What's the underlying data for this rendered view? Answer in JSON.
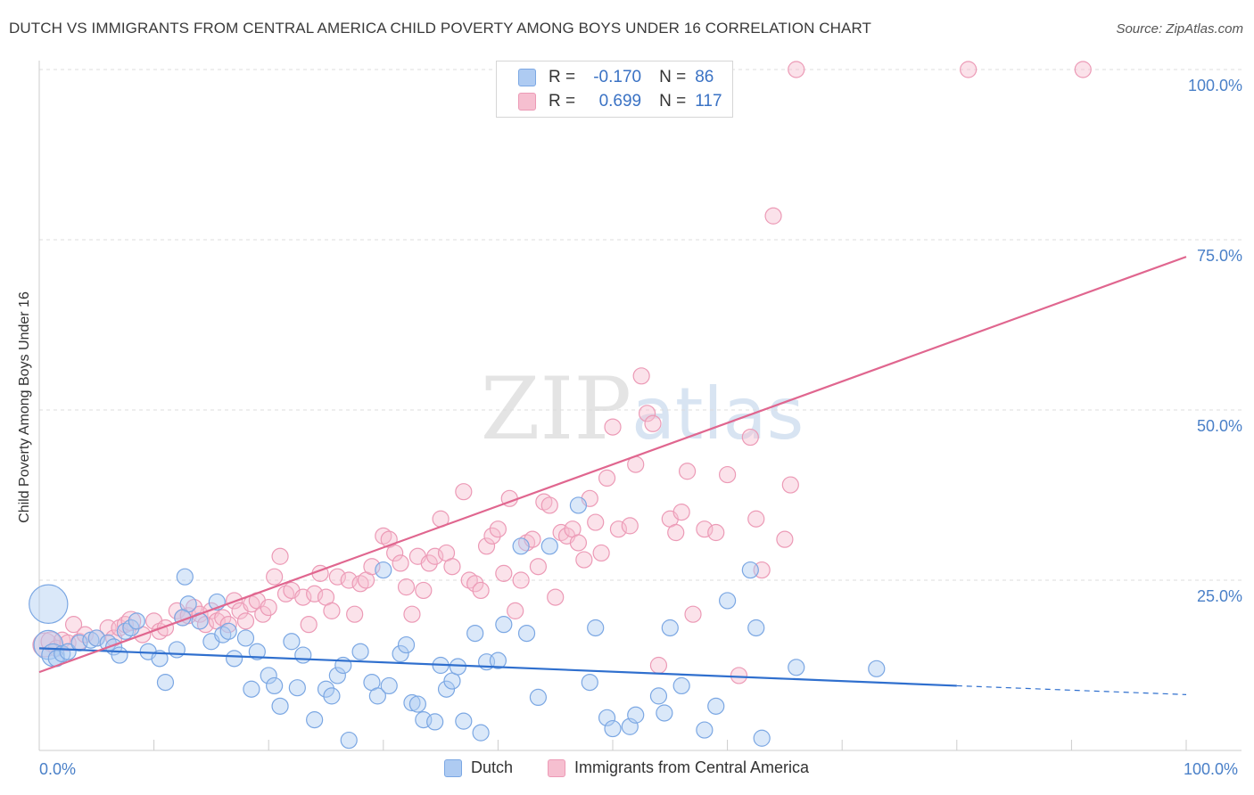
{
  "title": "DUTCH VS IMMIGRANTS FROM CENTRAL AMERICA CHILD POVERTY AMONG BOYS UNDER 16 CORRELATION CHART",
  "source": "Source: ZipAtlas.com",
  "watermark": "ZIPatlas",
  "stats": {
    "dutch": {
      "r_label": "R =",
      "r": "-0.170",
      "n_label": "N =",
      "n": "86"
    },
    "immigrants": {
      "r_label": "R =",
      "r": "0.699",
      "n_label": "N =",
      "n": "117"
    }
  },
  "legend": {
    "dutch": "Dutch",
    "immigrants": "Immigrants from Central America"
  },
  "colors": {
    "dutch_fill": "#aecbf2",
    "dutch_stroke": "#7ba7e3",
    "dutch_line": "#2f6fce",
    "imm_fill": "#f6bfd0",
    "imm_stroke": "#ec9ab6",
    "imm_line": "#e0668f",
    "axis_text": "#4a80c8",
    "grid": "#dddddd"
  },
  "chart_data": {
    "type": "scatter",
    "title": "DUTCH VS IMMIGRANTS FROM CENTRAL AMERICA CHILD POVERTY AMONG BOYS UNDER 16 CORRELATION CHART",
    "xlabel": "",
    "ylabel": "Child Poverty Among Boys Under 16",
    "xlim": [
      0,
      100
    ],
    "ylim": [
      0,
      100
    ],
    "x_tick_labels": [
      "0.0%",
      "100.0%"
    ],
    "y_tick_labels": [
      "25.0%",
      "50.0%",
      "75.0%",
      "100.0%"
    ],
    "y_ticks": [
      25,
      50,
      75,
      100
    ],
    "grid": true,
    "legend_position": "bottom-center",
    "series": [
      {
        "name": "Dutch",
        "trend": {
          "x": [
            0,
            80
          ],
          "y": [
            15.0,
            9.5
          ],
          "dashed_extension_to_x": 100,
          "dashed_extension_y": 8.2
        },
        "points": [
          [
            0.8,
            21.5,
            2.4
          ],
          [
            0.8,
            15.5,
            1.8
          ],
          [
            1.2,
            14,
            1.4
          ],
          [
            1.5,
            13.5,
            1
          ],
          [
            2,
            14.2,
            1
          ],
          [
            2.5,
            14.5,
            1
          ],
          [
            3.5,
            15.8,
            1
          ],
          [
            4.5,
            16.2,
            1
          ],
          [
            5,
            16.5,
            1
          ],
          [
            6,
            15.8,
            1
          ],
          [
            6.5,
            15.2,
            1
          ],
          [
            7,
            14,
            1
          ],
          [
            7.5,
            17.5,
            1
          ],
          [
            8,
            18,
            1
          ],
          [
            8.5,
            19,
            1
          ],
          [
            9.5,
            14.5,
            1
          ],
          [
            10.5,
            13.5,
            1
          ],
          [
            11,
            10,
            1
          ],
          [
            12,
            14.8,
            1
          ],
          [
            13,
            21.5,
            1
          ],
          [
            14,
            19,
            1
          ],
          [
            15,
            16,
            1
          ],
          [
            15.5,
            21.8,
            1
          ],
          [
            16,
            17,
            1
          ],
          [
            12.5,
            19.5,
            1
          ],
          [
            12.7,
            25.5,
            1
          ],
          [
            16.5,
            17.5,
            1
          ],
          [
            17,
            13.5,
            1
          ],
          [
            18,
            16.5,
            1
          ],
          [
            18.5,
            9,
            1
          ],
          [
            19,
            14.5,
            1
          ],
          [
            20,
            11,
            1
          ],
          [
            20.5,
            9.5,
            1
          ],
          [
            21,
            6.5,
            1
          ],
          [
            22,
            16,
            1
          ],
          [
            22.5,
            9.2,
            1
          ],
          [
            23,
            14,
            1
          ],
          [
            24,
            4.5,
            1
          ],
          [
            25,
            9,
            1
          ],
          [
            25.5,
            8,
            1
          ],
          [
            26,
            11,
            1
          ],
          [
            26.5,
            12.5,
            1
          ],
          [
            27,
            1.5,
            1
          ],
          [
            28,
            14.5,
            1
          ],
          [
            29,
            10,
            1
          ],
          [
            29.5,
            8,
            1
          ],
          [
            30,
            26.5,
            1
          ],
          [
            30.5,
            9.5,
            1
          ],
          [
            31.5,
            14.2,
            1
          ],
          [
            32,
            15.5,
            1
          ],
          [
            32.5,
            7,
            1
          ],
          [
            33,
            6.8,
            1
          ],
          [
            33.5,
            4.5,
            1
          ],
          [
            34.5,
            4.2,
            1
          ],
          [
            35,
            12.5,
            1
          ],
          [
            35.5,
            9,
            1
          ],
          [
            36,
            10.2,
            1
          ],
          [
            36.5,
            12.3,
            1
          ],
          [
            37,
            4.3,
            1
          ],
          [
            38,
            17.2,
            1
          ],
          [
            38.5,
            2.6,
            1
          ],
          [
            39,
            13,
            1
          ],
          [
            40,
            13.2,
            1
          ],
          [
            40.5,
            18.5,
            1
          ],
          [
            42,
            30,
            1
          ],
          [
            42.5,
            17.2,
            1
          ],
          [
            43.5,
            7.8,
            1
          ],
          [
            44.5,
            30,
            1
          ],
          [
            47,
            36,
            1
          ],
          [
            48,
            10,
            1
          ],
          [
            48.5,
            18,
            1
          ],
          [
            49.5,
            4.8,
            1
          ],
          [
            50,
            3.2,
            1
          ],
          [
            51.5,
            3.5,
            1
          ],
          [
            52,
            5.2,
            1
          ],
          [
            54,
            8,
            1
          ],
          [
            54.5,
            5.5,
            1
          ],
          [
            55,
            18,
            1
          ],
          [
            56,
            9.5,
            1
          ],
          [
            58,
            3,
            1
          ],
          [
            59,
            6.5,
            1
          ],
          [
            60,
            22,
            1
          ],
          [
            62,
            26.5,
            1
          ],
          [
            62.5,
            18,
            1
          ],
          [
            63,
            1.8,
            1
          ],
          [
            66,
            12.2,
            1
          ],
          [
            73,
            12,
            1
          ]
        ]
      },
      {
        "name": "Immigrants from Central America",
        "trend": {
          "x": [
            0,
            100
          ],
          "y": [
            11.5,
            72.5
          ]
        },
        "points": [
          [
            0.5,
            15.5,
            1.5
          ],
          [
            1,
            16,
            1.2
          ],
          [
            1.5,
            15,
            1
          ],
          [
            2,
            16.2,
            1
          ],
          [
            2.5,
            15.8,
            1
          ],
          [
            3,
            18.5,
            1
          ],
          [
            3.5,
            16,
            1
          ],
          [
            4,
            17,
            1
          ],
          [
            5,
            16.5,
            1
          ],
          [
            6,
            18,
            1
          ],
          [
            6.5,
            16.5,
            1
          ],
          [
            7,
            18,
            1
          ],
          [
            7.5,
            18.5,
            1
          ],
          [
            8,
            19,
            1.2
          ],
          [
            9,
            17,
            1
          ],
          [
            10,
            19,
            1
          ],
          [
            10.5,
            17.5,
            1
          ],
          [
            11,
            18,
            1
          ],
          [
            12,
            20.5,
            1
          ],
          [
            12.5,
            19.5,
            1
          ],
          [
            13,
            19.8,
            1
          ],
          [
            13.5,
            21,
            1
          ],
          [
            14,
            20,
            1
          ],
          [
            14.5,
            18.5,
            1
          ],
          [
            15,
            20.5,
            1
          ],
          [
            15.5,
            19,
            1
          ],
          [
            16,
            19.5,
            1
          ],
          [
            16.5,
            18.5,
            1
          ],
          [
            17,
            22,
            1
          ],
          [
            17.5,
            20.5,
            1
          ],
          [
            18,
            19,
            1
          ],
          [
            18.5,
            21.5,
            1
          ],
          [
            19,
            22,
            1
          ],
          [
            19.5,
            20,
            1
          ],
          [
            20,
            21,
            1
          ],
          [
            20.5,
            25.5,
            1
          ],
          [
            21,
            28.5,
            1
          ],
          [
            21.5,
            23,
            1
          ],
          [
            22,
            23.5,
            1
          ],
          [
            23,
            22.5,
            1
          ],
          [
            23.5,
            18.5,
            1
          ],
          [
            24,
            23,
            1
          ],
          [
            24.5,
            26,
            1
          ],
          [
            25,
            22.5,
            1
          ],
          [
            25.5,
            20.5,
            1
          ],
          [
            26,
            25.5,
            1
          ],
          [
            27,
            25,
            1
          ],
          [
            27.5,
            20,
            1
          ],
          [
            28,
            24.5,
            1
          ],
          [
            28.5,
            25,
            1
          ],
          [
            29,
            27,
            1
          ],
          [
            30,
            31.5,
            1
          ],
          [
            30.5,
            31,
            1
          ],
          [
            31,
            29,
            1
          ],
          [
            31.5,
            27.5,
            1
          ],
          [
            32,
            24,
            1
          ],
          [
            32.5,
            20,
            1
          ],
          [
            33,
            28.5,
            1
          ],
          [
            33.5,
            23.5,
            1
          ],
          [
            34,
            27.5,
            1
          ],
          [
            34.5,
            28.5,
            1
          ],
          [
            35,
            34,
            1
          ],
          [
            35.5,
            29,
            1
          ],
          [
            36,
            27,
            1
          ],
          [
            37,
            38,
            1
          ],
          [
            37.5,
            25,
            1
          ],
          [
            38,
            24.5,
            1
          ],
          [
            38.5,
            23.5,
            1
          ],
          [
            39,
            30,
            1
          ],
          [
            39.5,
            31.5,
            1
          ],
          [
            40,
            32.5,
            1
          ],
          [
            40.5,
            26,
            1
          ],
          [
            41,
            37,
            1
          ],
          [
            41.5,
            20.5,
            1
          ],
          [
            42,
            25,
            1
          ],
          [
            42.5,
            30.5,
            1
          ],
          [
            43,
            31,
            1
          ],
          [
            43.5,
            27,
            1
          ],
          [
            44,
            36.5,
            1
          ],
          [
            44.5,
            36,
            1
          ],
          [
            45,
            22.5,
            1
          ],
          [
            45.5,
            32,
            1
          ],
          [
            46,
            31.5,
            1
          ],
          [
            46.5,
            32.5,
            1
          ],
          [
            47,
            30.5,
            1
          ],
          [
            47.5,
            28,
            1
          ],
          [
            48,
            37,
            1
          ],
          [
            48.5,
            33.5,
            1
          ],
          [
            49,
            29,
            1
          ],
          [
            49.5,
            40,
            1
          ],
          [
            50,
            47.5,
            1
          ],
          [
            50.5,
            32.5,
            1
          ],
          [
            51.5,
            33,
            1
          ],
          [
            52,
            42,
            1
          ],
          [
            52.5,
            55,
            1
          ],
          [
            53,
            49.5,
            1
          ],
          [
            53.5,
            48,
            1
          ],
          [
            54,
            12.5,
            1
          ],
          [
            55,
            34,
            1
          ],
          [
            55.5,
            32,
            1
          ],
          [
            56,
            35,
            1
          ],
          [
            56.5,
            41,
            1
          ],
          [
            57,
            20,
            1
          ],
          [
            58,
            32.5,
            1
          ],
          [
            59,
            32,
            1
          ],
          [
            60,
            40.5,
            1
          ],
          [
            61,
            11,
            1
          ],
          [
            62,
            46,
            1
          ],
          [
            62.5,
            34,
            1
          ],
          [
            63,
            26.5,
            1
          ],
          [
            64,
            78.5,
            1
          ],
          [
            65,
            31,
            1
          ],
          [
            65.5,
            39,
            1
          ],
          [
            66,
            100,
            1
          ],
          [
            81,
            100,
            1
          ],
          [
            91,
            100,
            1
          ]
        ]
      }
    ]
  }
}
